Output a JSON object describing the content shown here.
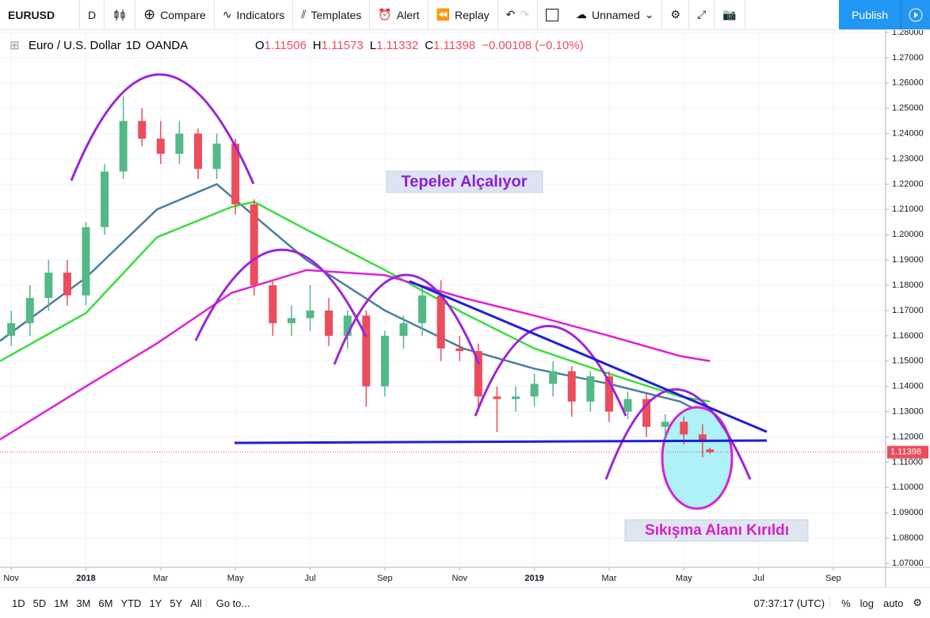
{
  "toolbar": {
    "symbol": "EURUSD",
    "interval": "D",
    "compare": "Compare",
    "indicators": "Indicators",
    "templates": "Templates",
    "alert": "Alert",
    "replay": "Replay",
    "layout": "Unnamed",
    "publish": "Publish"
  },
  "bottom_bar": {
    "ranges": [
      "1D",
      "5D",
      "1M",
      "3M",
      "6M",
      "YTD",
      "1Y",
      "5Y",
      "All"
    ],
    "goto": "Go to...",
    "time": "07:37:17 (UTC)",
    "percent": "%",
    "log": "log",
    "auto": "auto"
  },
  "chart_data": {
    "type": "candlestick",
    "title": "Euro / U.S. Dollar",
    "interval": "1D",
    "source": "OANDA",
    "legend": {
      "o_label": "O",
      "o": "1.11506",
      "h_label": "H",
      "h": "1.11573",
      "l_label": "L",
      "l": "1.11332",
      "c_label": "C",
      "c": "1.11398",
      "change": "−0.00108 (−0.10%)"
    },
    "annotations": [
      "Tepeler Alçalıyor",
      "Sıkışma Alanı Kırıldı"
    ],
    "last_price": {
      "value": 1.11398,
      "label": "1.11398"
    },
    "up_color": "#53b987",
    "down_color": "#eb4d5c",
    "grid": true,
    "xlim": [
      -0.3,
      23.4
    ],
    "xticks": [
      {
        "value": 0,
        "label": "Nov"
      },
      {
        "value": 2,
        "label": "2018"
      },
      {
        "value": 4,
        "label": "Mar"
      },
      {
        "value": 6,
        "label": "May"
      },
      {
        "value": 8,
        "label": "Jul"
      },
      {
        "value": 10,
        "label": "Sep"
      },
      {
        "value": 12,
        "label": "Nov"
      },
      {
        "value": 14,
        "label": "2019"
      },
      {
        "value": 16,
        "label": "Mar"
      },
      {
        "value": 18,
        "label": "May"
      },
      {
        "value": 20,
        "label": "Jul"
      },
      {
        "value": 22,
        "label": "Sep"
      }
    ],
    "ylim": [
      1.07,
      1.28
    ],
    "yticks": [
      {
        "value": 1.07,
        "label": "1.07000"
      },
      {
        "value": 1.08,
        "label": "1.08000"
      },
      {
        "value": 1.09,
        "label": "1.09000"
      },
      {
        "value": 1.1,
        "label": "1.10000"
      },
      {
        "value": 1.11,
        "label": "1.11000"
      },
      {
        "value": 1.12,
        "label": "1.12000"
      },
      {
        "value": 1.13,
        "label": "1.13000"
      },
      {
        "value": 1.14,
        "label": "1.14000"
      },
      {
        "value": 1.15,
        "label": "1.15000"
      },
      {
        "value": 1.16,
        "label": "1.16000"
      },
      {
        "value": 1.17,
        "label": "1.17000"
      },
      {
        "value": 1.18,
        "label": "1.18000"
      },
      {
        "value": 1.19,
        "label": "1.19000"
      },
      {
        "value": 1.2,
        "label": "1.20000"
      },
      {
        "value": 1.21,
        "label": "1.21000"
      },
      {
        "value": 1.22,
        "label": "1.22000"
      },
      {
        "value": 1.23,
        "label": "1.23000"
      },
      {
        "value": 1.24,
        "label": "1.24000"
      },
      {
        "value": 1.25,
        "label": "1.25000"
      },
      {
        "value": 1.26,
        "label": "1.26000"
      },
      {
        "value": 1.27,
        "label": "1.27000"
      },
      {
        "value": 1.28,
        "label": "1.28000"
      }
    ],
    "x": [
      0,
      0.5,
      1,
      1.5,
      2,
      2.5,
      3,
      3.5,
      4,
      4.5,
      5,
      5.5,
      6,
      6.5,
      7,
      7.5,
      8,
      8.5,
      9,
      9.5,
      10,
      10.5,
      11,
      11.5,
      12,
      12.5,
      13,
      13.5,
      14,
      14.5,
      15,
      15.5,
      16,
      16.5,
      17,
      17.5,
      18,
      18.5,
      18.7
    ],
    "open": [
      1.16,
      1.165,
      1.175,
      1.185,
      1.176,
      1.203,
      1.225,
      1.245,
      1.238,
      1.232,
      1.24,
      1.226,
      1.236,
      1.212,
      1.18,
      1.165,
      1.167,
      1.17,
      1.16,
      1.168,
      1.14,
      1.16,
      1.165,
      1.176,
      1.155,
      1.154,
      1.136,
      1.135,
      1.136,
      1.141,
      1.146,
      1.134,
      1.144,
      1.13,
      1.135,
      1.124,
      1.126,
      1.121,
      1.11506
    ],
    "high": [
      1.17,
      1.18,
      1.19,
      1.19,
      1.205,
      1.228,
      1.255,
      1.25,
      1.245,
      1.245,
      1.242,
      1.24,
      1.238,
      1.214,
      1.182,
      1.172,
      1.18,
      1.175,
      1.17,
      1.17,
      1.162,
      1.168,
      1.18,
      1.182,
      1.16,
      1.157,
      1.14,
      1.14,
      1.145,
      1.15,
      1.148,
      1.146,
      1.146,
      1.138,
      1.137,
      1.129,
      1.128,
      1.125,
      1.11573
    ],
    "low": [
      1.156,
      1.16,
      1.17,
      1.172,
      1.172,
      1.2,
      1.222,
      1.235,
      1.228,
      1.228,
      1.222,
      1.222,
      1.208,
      1.176,
      1.16,
      1.16,
      1.162,
      1.156,
      1.155,
      1.132,
      1.136,
      1.155,
      1.16,
      1.15,
      1.15,
      1.13,
      1.122,
      1.13,
      1.132,
      1.136,
      1.128,
      1.13,
      1.126,
      1.127,
      1.12,
      1.118,
      1.117,
      1.112,
      1.11332
    ],
    "close": [
      1.165,
      1.175,
      1.185,
      1.176,
      1.203,
      1.225,
      1.245,
      1.238,
      1.232,
      1.24,
      1.226,
      1.236,
      1.212,
      1.18,
      1.165,
      1.167,
      1.17,
      1.16,
      1.168,
      1.14,
      1.16,
      1.165,
      1.176,
      1.155,
      1.154,
      1.136,
      1.135,
      1.136,
      1.141,
      1.146,
      1.134,
      1.144,
      1.13,
      1.135,
      1.124,
      1.126,
      1.121,
      1.118,
      1.11398
    ],
    "moving_averages": [
      {
        "color": "#4a7ea0",
        "x": [
          -0.3,
          2,
          3.9,
          5.5,
          7.9,
          10,
          12.1,
          14,
          16,
          17.9,
          18.7
        ],
        "values": [
          1.158,
          1.183,
          1.21,
          1.22,
          1.19,
          1.17,
          1.155,
          1.147,
          1.141,
          1.134,
          1.128
        ]
      },
      {
        "color": "#3ddc3d",
        "x": [
          -0.3,
          2,
          3.9,
          5.9,
          6.5,
          7.9,
          10,
          12.1,
          14,
          16,
          17.9,
          18.7
        ],
        "values": [
          1.15,
          1.169,
          1.199,
          1.211,
          1.213,
          1.202,
          1.186,
          1.169,
          1.155,
          1.145,
          1.136,
          1.134
        ]
      },
      {
        "color": "#e020d8",
        "x": [
          -0.3,
          2,
          3.9,
          5.9,
          7.9,
          10,
          12.1,
          14,
          16,
          17.9,
          18.7
        ],
        "values": [
          1.119,
          1.14,
          1.157,
          1.177,
          1.186,
          1.184,
          1.175,
          1.168,
          1.16,
          1.152,
          1.15
        ]
      }
    ]
  }
}
